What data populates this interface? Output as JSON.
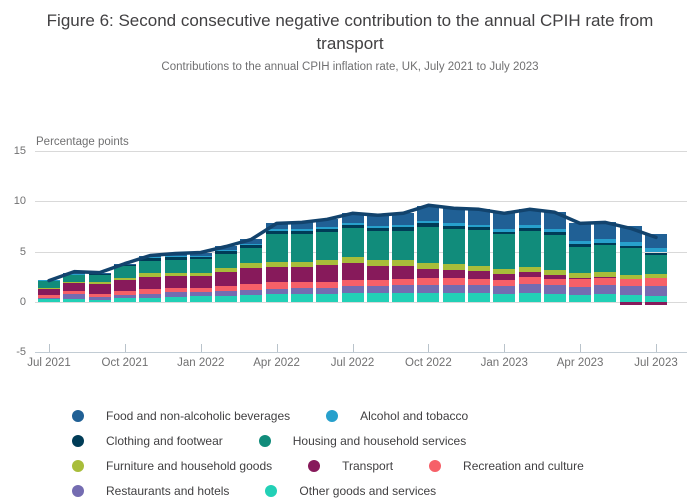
{
  "title": "Figure 6: Second consecutive negative contribution to the annual CPIH rate from transport",
  "subtitle": "Contributions to the annual CPIH inflation rate, UK, July 2021 to July 2023",
  "chart_data": {
    "type": "bar",
    "stacked": true,
    "title": "Figure 6: Second consecutive negative contribution to the annual CPIH rate from transport",
    "subtitle": "Contributions to the annual CPIH inflation rate, UK, July 2021 to July 2023",
    "y_axis_title": "Percentage points",
    "xlabel": "",
    "ylabel": "Percentage points",
    "ylim": [
      -5,
      15
    ],
    "y_ticks": [
      15,
      10,
      5,
      0,
      -5
    ],
    "grid": true,
    "legend_position": "bottom",
    "categories": [
      "Jul 2021",
      "Aug 2021",
      "Sep 2021",
      "Oct 2021",
      "Nov 2021",
      "Dec 2021",
      "Jan 2022",
      "Feb 2022",
      "Mar 2022",
      "Apr 2022",
      "May 2022",
      "Jun 2022",
      "Jul 2022",
      "Aug 2022",
      "Sep 2022",
      "Oct 2022",
      "Nov 2022",
      "Dec 2022",
      "Jan 2023",
      "Feb 2023",
      "Mar 2023",
      "Apr 2023",
      "May 2023",
      "Jun 2023",
      "Jul 2023"
    ],
    "x_tick_labels": [
      "Jul 2021",
      "Oct 2021",
      "Jan 2022",
      "Apr 2022",
      "Jul 2022",
      "Oct 2022",
      "Jan 2023",
      "Apr 2023",
      "Jul 2023"
    ],
    "series": [
      {
        "name": "Food and non-alcoholic beverages",
        "color": "#206095",
        "values": [
          0.0,
          0.05,
          0.05,
          0.05,
          0.15,
          0.25,
          0.3,
          0.35,
          0.45,
          0.6,
          0.7,
          0.8,
          1.0,
          1.1,
          1.2,
          1.5,
          1.5,
          1.55,
          1.55,
          1.6,
          1.7,
          1.75,
          1.7,
          1.6,
          1.4
        ]
      },
      {
        "name": "Alcohol and tobacco",
        "color": "#27A0CC",
        "values": [
          0.05,
          0.05,
          0.05,
          0.05,
          0.1,
          0.1,
          0.1,
          0.1,
          0.1,
          0.15,
          0.15,
          0.15,
          0.2,
          0.2,
          0.2,
          0.25,
          0.25,
          0.25,
          0.3,
          0.3,
          0.3,
          0.35,
          0.35,
          0.4,
          0.4
        ]
      },
      {
        "name": "Clothing and footwear",
        "color": "#003C57",
        "values": [
          0.0,
          0.05,
          0.1,
          0.15,
          0.25,
          0.25,
          0.25,
          0.3,
          0.35,
          0.35,
          0.35,
          0.3,
          0.3,
          0.3,
          0.35,
          0.35,
          0.3,
          0.3,
          0.25,
          0.3,
          0.3,
          0.25,
          0.25,
          0.25,
          0.2
        ]
      },
      {
        "name": "Housing and household services",
        "color": "#118C7B",
        "values": [
          0.7,
          0.7,
          0.7,
          1.15,
          1.25,
          1.3,
          1.35,
          1.4,
          1.45,
          2.75,
          2.75,
          2.8,
          2.85,
          2.85,
          2.9,
          3.55,
          3.5,
          3.5,
          3.45,
          3.5,
          3.45,
          2.6,
          2.65,
          2.6,
          1.9
        ]
      },
      {
        "name": "Furniture and household goods",
        "color": "#A8BD3A",
        "values": [
          0.1,
          0.15,
          0.2,
          0.25,
          0.35,
          0.3,
          0.35,
          0.4,
          0.45,
          0.45,
          0.5,
          0.5,
          0.55,
          0.55,
          0.6,
          0.6,
          0.6,
          0.55,
          0.5,
          0.5,
          0.5,
          0.45,
          0.45,
          0.4,
          0.4
        ]
      },
      {
        "name": "Transport",
        "color": "#871A5B",
        "values": [
          0.6,
          0.8,
          1.0,
          1.1,
          1.25,
          1.2,
          1.15,
          1.35,
          1.65,
          1.55,
          1.5,
          1.7,
          1.7,
          1.4,
          1.25,
          0.9,
          0.8,
          0.75,
          0.55,
          0.5,
          0.4,
          0.1,
          0.05,
          -0.3,
          -0.3
        ]
      },
      {
        "name": "Recreation and culture",
        "color": "#F66068",
        "values": [
          0.3,
          0.3,
          0.3,
          0.35,
          0.45,
          0.45,
          0.45,
          0.55,
          0.6,
          0.65,
          0.6,
          0.55,
          0.65,
          0.6,
          0.65,
          0.7,
          0.65,
          0.6,
          0.6,
          0.7,
          0.65,
          0.8,
          0.8,
          0.7,
          0.8
        ]
      },
      {
        "name": "Restaurants and hotels",
        "color": "#746CB1",
        "values": [
          0.1,
          0.45,
          0.35,
          0.35,
          0.4,
          0.45,
          0.4,
          0.45,
          0.5,
          0.55,
          0.55,
          0.6,
          0.7,
          0.7,
          0.75,
          0.8,
          0.8,
          0.8,
          0.8,
          0.9,
          0.85,
          0.85,
          0.9,
          0.9,
          1.0
        ]
      },
      {
        "name": "Other goods and services",
        "color": "#22D0B6",
        "values": [
          0.3,
          0.3,
          0.15,
          0.35,
          0.4,
          0.5,
          0.55,
          0.6,
          0.65,
          0.75,
          0.8,
          0.8,
          0.85,
          0.9,
          0.9,
          0.9,
          0.9,
          0.9,
          0.8,
          0.9,
          0.8,
          0.65,
          0.75,
          0.7,
          0.6
        ]
      }
    ],
    "stack_order_bottom_to_top": [
      "Other goods and services",
      "Restaurants and hotels",
      "Recreation and culture",
      "Transport",
      "Furniture and household goods",
      "Housing and household services",
      "Clothing and footwear",
      "Alcohol and tobacco",
      "Food and non-alcoholic beverages"
    ],
    "line_series": {
      "name": "CPIH annual inflation rate",
      "color": "#12436D",
      "values": [
        2.1,
        3.0,
        2.9,
        3.8,
        4.6,
        4.8,
        4.9,
        5.5,
        6.2,
        7.8,
        7.9,
        8.2,
        8.8,
        8.6,
        8.8,
        9.6,
        9.3,
        9.2,
        8.8,
        9.2,
        8.9,
        7.8,
        7.9,
        7.3,
        6.4
      ]
    },
    "legend_rows": [
      [
        0,
        1
      ],
      [
        2,
        3
      ],
      [
        4,
        5,
        6
      ],
      [
        7,
        8
      ]
    ]
  }
}
